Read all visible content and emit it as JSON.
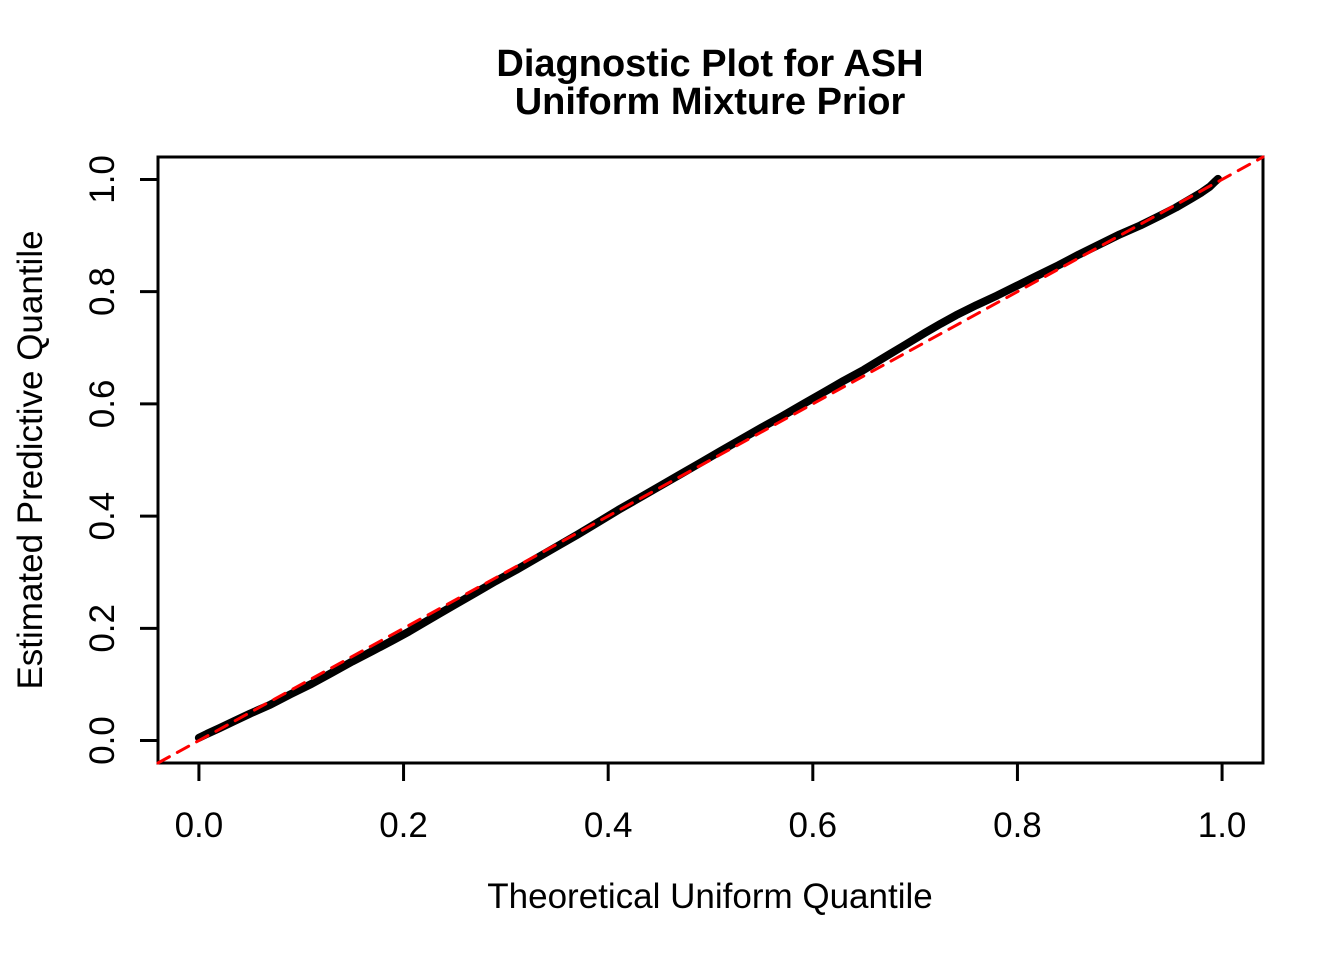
{
  "figure": {
    "background_color": "#FFFFFF",
    "axis_color": "#000000"
  },
  "chart_data": {
    "type": "line",
    "title_line1": "Diagnostic Plot for ASH",
    "title_line2": "Uniform Mixture Prior",
    "xlabel": "Theoretical Uniform Quantile",
    "ylabel": "Estimated Predictive Quantile",
    "xlim": [
      -0.04,
      1.04
    ],
    "ylim": [
      -0.04,
      1.04
    ],
    "grid": false,
    "legend": null,
    "x_ticks": [
      0.0,
      0.2,
      0.4,
      0.6,
      0.8,
      1.0
    ],
    "x_tick_labels": [
      "0.0",
      "0.2",
      "0.4",
      "0.6",
      "0.8",
      "1.0"
    ],
    "y_ticks": [
      0.0,
      0.2,
      0.4,
      0.6,
      0.8,
      1.0
    ],
    "y_tick_labels": [
      "0.0",
      "0.2",
      "0.4",
      "0.6",
      "0.8",
      "1.0"
    ],
    "series": [
      {
        "name": "estimated-predictive-quantiles",
        "color": "#000000",
        "line_style": "solid",
        "line_width": 8,
        "points": [
          [
            0.0,
            0.005
          ],
          [
            0.008,
            0.012
          ],
          [
            0.02,
            0.022
          ],
          [
            0.035,
            0.035
          ],
          [
            0.05,
            0.048
          ],
          [
            0.07,
            0.064
          ],
          [
            0.09,
            0.083
          ],
          [
            0.11,
            0.101
          ],
          [
            0.13,
            0.121
          ],
          [
            0.15,
            0.141
          ],
          [
            0.17,
            0.16
          ],
          [
            0.19,
            0.179
          ],
          [
            0.205,
            0.194
          ],
          [
            0.22,
            0.21
          ],
          [
            0.235,
            0.226
          ],
          [
            0.25,
            0.242
          ],
          [
            0.27,
            0.263
          ],
          [
            0.29,
            0.284
          ],
          [
            0.31,
            0.304
          ],
          [
            0.33,
            0.325
          ],
          [
            0.35,
            0.346
          ],
          [
            0.37,
            0.367
          ],
          [
            0.39,
            0.389
          ],
          [
            0.41,
            0.411
          ],
          [
            0.43,
            0.432
          ],
          [
            0.45,
            0.453
          ],
          [
            0.47,
            0.474
          ],
          [
            0.49,
            0.495
          ],
          [
            0.51,
            0.516
          ],
          [
            0.53,
            0.537
          ],
          [
            0.55,
            0.558
          ],
          [
            0.57,
            0.578
          ],
          [
            0.59,
            0.599
          ],
          [
            0.61,
            0.62
          ],
          [
            0.63,
            0.641
          ],
          [
            0.65,
            0.661
          ],
          [
            0.67,
            0.683
          ],
          [
            0.69,
            0.705
          ],
          [
            0.71,
            0.727
          ],
          [
            0.725,
            0.743
          ],
          [
            0.74,
            0.758
          ],
          [
            0.76,
            0.776
          ],
          [
            0.78,
            0.793
          ],
          [
            0.8,
            0.811
          ],
          [
            0.82,
            0.829
          ],
          [
            0.84,
            0.847
          ],
          [
            0.86,
            0.866
          ],
          [
            0.88,
            0.884
          ],
          [
            0.9,
            0.902
          ],
          [
            0.92,
            0.918
          ],
          [
            0.94,
            0.936
          ],
          [
            0.955,
            0.95
          ],
          [
            0.97,
            0.966
          ],
          [
            0.98,
            0.977
          ],
          [
            0.988,
            0.987
          ],
          [
            0.993,
            0.996
          ],
          [
            0.996,
            1.001
          ]
        ]
      },
      {
        "name": "identity-reference-line",
        "color": "#FF0000",
        "line_style": "dashed",
        "line_width": 3,
        "points": [
          [
            -0.04,
            -0.04
          ],
          [
            1.04,
            1.04
          ]
        ]
      }
    ]
  }
}
